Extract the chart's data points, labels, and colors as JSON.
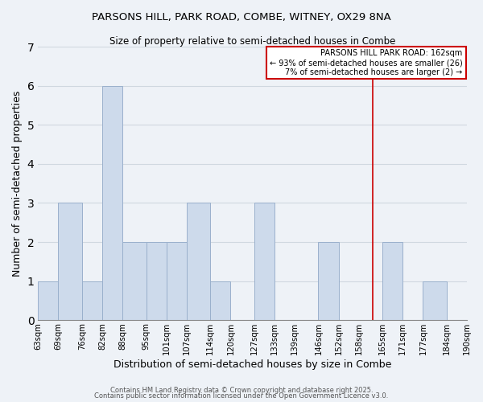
{
  "title": "PARSONS HILL, PARK ROAD, COMBE, WITNEY, OX29 8NA",
  "subtitle": "Size of property relative to semi-detached houses in Combe",
  "xlabel": "Distribution of semi-detached houses by size in Combe",
  "ylabel": "Number of semi-detached properties",
  "bin_edges": [
    63,
    69,
    76,
    82,
    88,
    95,
    101,
    107,
    114,
    120,
    127,
    133,
    139,
    146,
    152,
    158,
    165,
    171,
    177,
    184,
    190
  ],
  "counts": [
    1,
    3,
    1,
    6,
    2,
    2,
    2,
    3,
    1,
    0,
    3,
    0,
    0,
    2,
    0,
    0,
    2,
    0,
    1,
    0
  ],
  "bar_color": "#cddaeb",
  "bar_edge_color": "#9ab0cc",
  "grid_color": "#d0d8e0",
  "vline_x": 162,
  "vline_color": "#cc0000",
  "annotation_text": "PARSONS HILL PARK ROAD: 162sqm\n← 93% of semi-detached houses are smaller (26)\n7% of semi-detached houses are larger (2) →",
  "annotation_box_color": "white",
  "annotation_box_edge_color": "#cc0000",
  "ylim": [
    0,
    7
  ],
  "yticks": [
    0,
    1,
    2,
    3,
    4,
    5,
    6,
    7
  ],
  "tick_labels": [
    "63sqm",
    "69sqm",
    "76sqm",
    "82sqm",
    "88sqm",
    "95sqm",
    "101sqm",
    "107sqm",
    "114sqm",
    "120sqm",
    "127sqm",
    "133sqm",
    "139sqm",
    "146sqm",
    "152sqm",
    "158sqm",
    "165sqm",
    "171sqm",
    "177sqm",
    "184sqm",
    "190sqm"
  ],
  "footer1": "Contains HM Land Registry data © Crown copyright and database right 2025.",
  "footer2": "Contains public sector information licensed under the Open Government Licence v3.0.",
  "background_color": "#eef2f7",
  "title_fontsize": 9.5,
  "subtitle_fontsize": 8.5
}
